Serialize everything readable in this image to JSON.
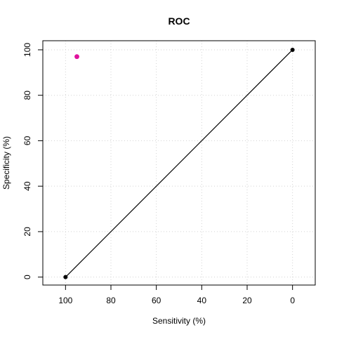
{
  "chart_data": {
    "type": "line",
    "title": "ROC",
    "xlabel": "Sensitivity (%)",
    "ylabel": "Specificity (%)",
    "x_reversed": true,
    "xlim": [
      110,
      -10
    ],
    "ylim": [
      -3.5,
      104
    ],
    "x_ticks": [
      100,
      80,
      60,
      40,
      20,
      0
    ],
    "y_ticks": [
      0,
      20,
      40,
      60,
      80,
      100
    ],
    "grid": true,
    "series": [
      {
        "x": [
          100,
          0
        ],
        "y": [
          0,
          100
        ],
        "line_color": "#000000",
        "point_color": "#000000"
      }
    ],
    "highlight_points": [
      {
        "x": 95,
        "y": 97,
        "color": "#E0119D"
      }
    ]
  }
}
